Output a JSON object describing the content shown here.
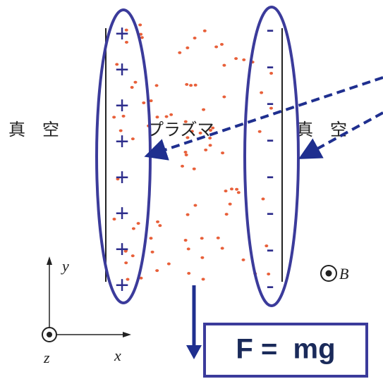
{
  "labels": {
    "vacuum_left": "真　空",
    "plasma": "プラズマ",
    "vacuum_right": "真　空",
    "b_field": "B",
    "axis_y": "y",
    "axis_x": "x",
    "axis_z": "z",
    "force": "F =  mg"
  },
  "plus_charges": [
    "+",
    "+",
    "+",
    "+",
    "+",
    "+",
    "+",
    "+"
  ],
  "minus_charges": [
    "-",
    "-",
    "-",
    "-",
    "-",
    "-",
    "-",
    "-"
  ]
}
